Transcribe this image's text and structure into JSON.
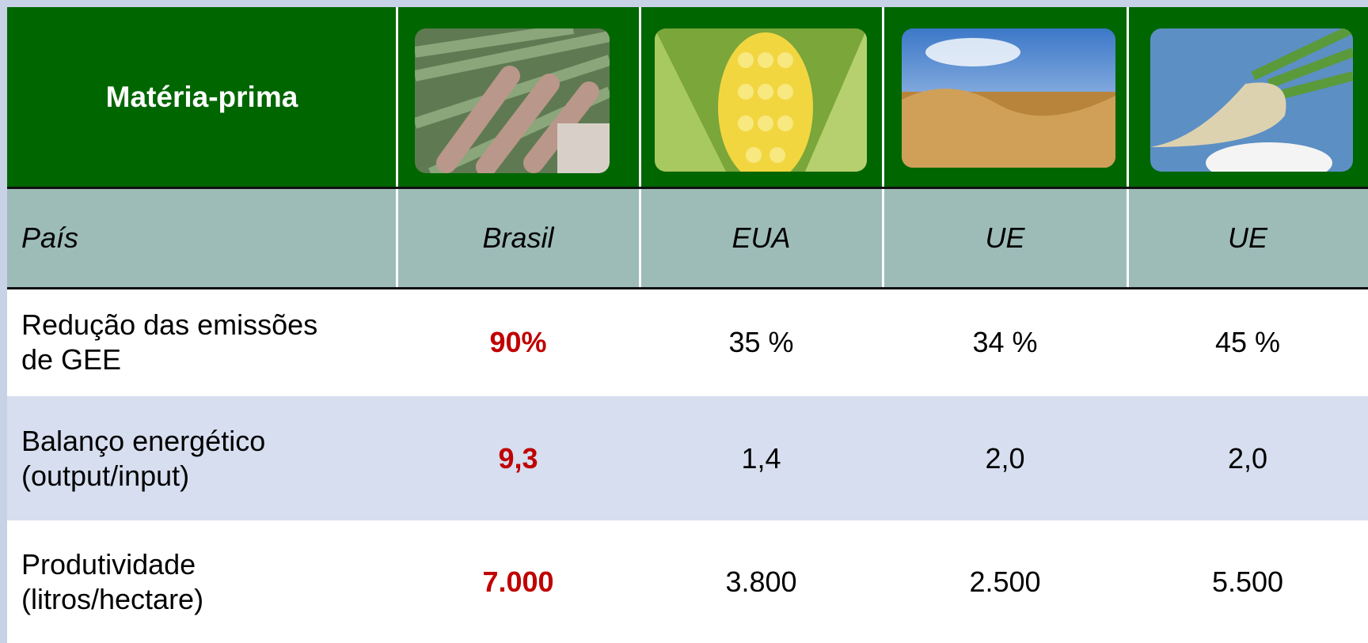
{
  "header": {
    "title": "Matéria-prima"
  },
  "table": {
    "header_row": [
      "País",
      "Brasil",
      "EUA",
      "UE",
      "UE"
    ],
    "rows": [
      [
        "Redução das emissões de GEE",
        "90%",
        "35 %",
        "34 %",
        "45 %"
      ],
      [
        "Balanço energético (output/input)",
        "9,3",
        "1,4",
        "2,0",
        "2,0"
      ],
      [
        "Produtividade (litros/hectare)",
        "7.000",
        "3.800",
        "2.500",
        "5.500"
      ]
    ]
  }
}
